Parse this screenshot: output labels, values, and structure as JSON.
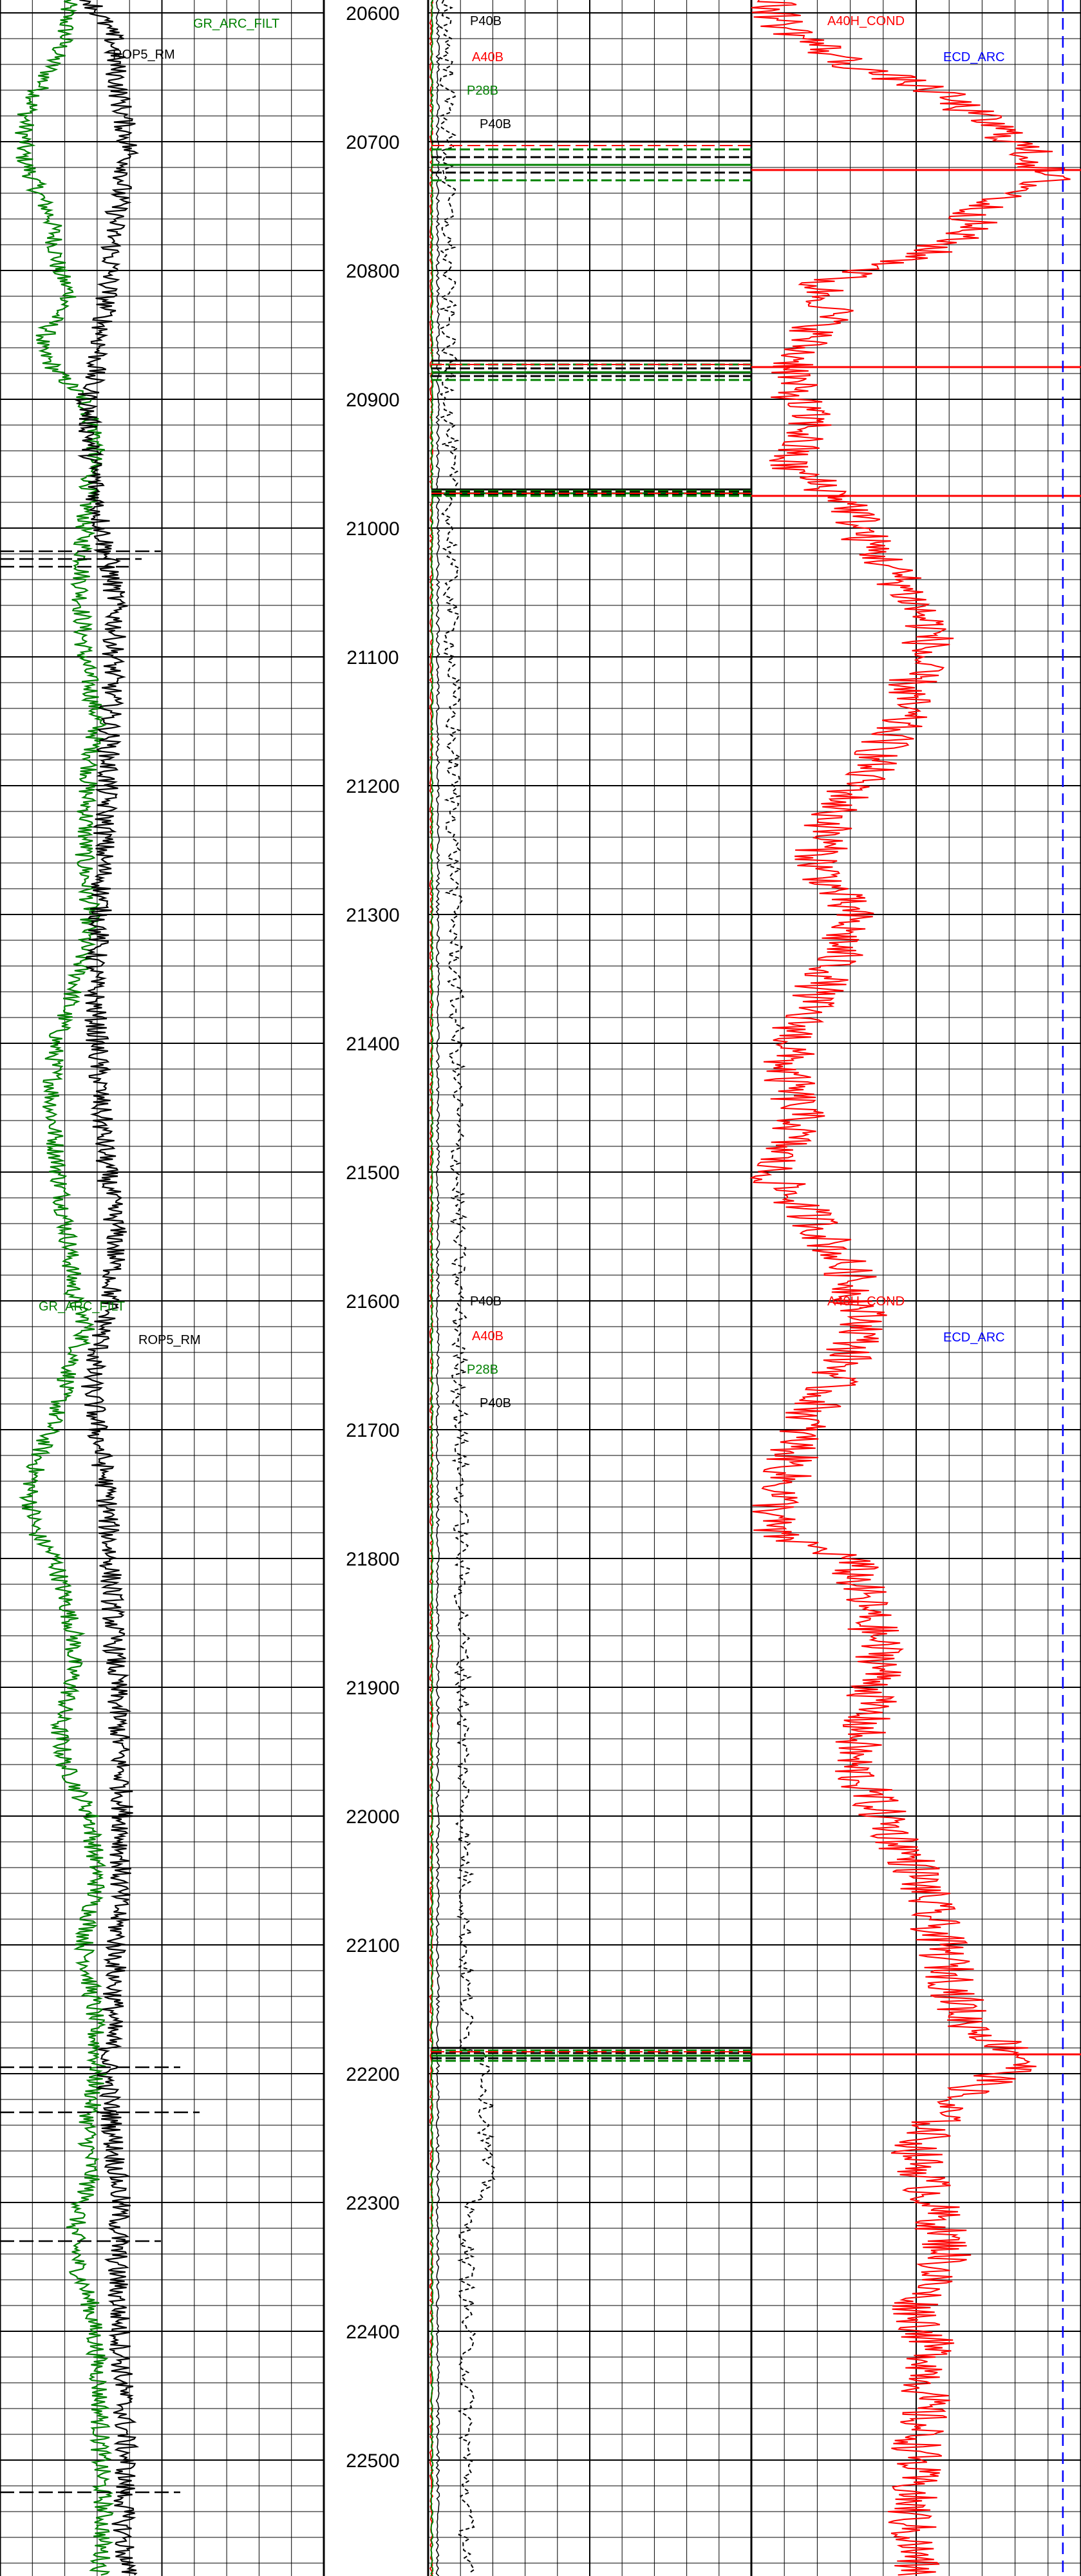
{
  "chart_data": {
    "type": "line",
    "title": "",
    "depth_axis": {
      "ticks": [
        20600,
        20700,
        20800,
        20900,
        21000,
        21100,
        21200,
        21300,
        21400,
        21500,
        21600,
        21700,
        21800,
        21900,
        22000,
        22100,
        22200,
        22300,
        22400,
        22500
      ],
      "range": [
        20590,
        22590
      ]
    },
    "grid": true,
    "tracks": [
      {
        "name": "track-1",
        "curves": [
          {
            "label": "GR_ARC_FILT",
            "color": "#008000",
            "depth": [
              20590,
              20620,
              20650,
              20680,
              20710,
              20740,
              20760,
              20800,
              20820,
              20840,
              20860,
              20880,
              20900,
              20930,
              20960,
              21000,
              21050,
              21100,
              21150,
              21200,
              21260,
              21300,
              21350,
              21400,
              21450,
              21500,
              21550,
              21600,
              21620,
              21650,
              21690,
              21720,
              21750,
              21780,
              21800,
              21830,
              21860,
              21900,
              21930,
              21960,
              22000,
              22050,
              22100,
              22150,
              22200,
              22240,
              22280,
              22320,
              22350,
              22380,
              22420,
              22460,
              22500,
              22540,
              22590
            ],
            "value": [
              0.21,
              0.2,
              0.14,
              0.08,
              0.07,
              0.12,
              0.16,
              0.18,
              0.22,
              0.16,
              0.12,
              0.18,
              0.26,
              0.3,
              0.28,
              0.26,
              0.25,
              0.26,
              0.3,
              0.27,
              0.26,
              0.28,
              0.24,
              0.17,
              0.16,
              0.18,
              0.21,
              0.23,
              0.27,
              0.22,
              0.17,
              0.12,
              0.09,
              0.11,
              0.17,
              0.2,
              0.23,
              0.22,
              0.18,
              0.2,
              0.28,
              0.3,
              0.26,
              0.29,
              0.3,
              0.27,
              0.28,
              0.23,
              0.24,
              0.28,
              0.3,
              0.31,
              0.31,
              0.32,
              0.31
            ]
          },
          {
            "label": "ROP5_RM",
            "color": "#000000",
            "depth": [
              20590,
              20620,
              20650,
              20680,
              20710,
              20740,
              20770,
              20800,
              20840,
              20870,
              20900,
              20940,
              20980,
              21020,
              21060,
              21100,
              21150,
              21200,
              21250,
              21300,
              21350,
              21400,
              21450,
              21500,
              21550,
              21600,
              21630,
              21660,
              21700,
              21750,
              21800,
              21850,
              21900,
              21950,
              22000,
              22050,
              22100,
              22150,
              22200,
              22250,
              22300,
              22350,
              22400,
              22450,
              22500,
              22550,
              22590
            ],
            "value": [
              0.28,
              0.35,
              0.36,
              0.38,
              0.4,
              0.37,
              0.35,
              0.34,
              0.32,
              0.3,
              0.27,
              0.28,
              0.3,
              0.33,
              0.36,
              0.35,
              0.34,
              0.33,
              0.32,
              0.31,
              0.29,
              0.3,
              0.31,
              0.33,
              0.36,
              0.34,
              0.31,
              0.28,
              0.3,
              0.33,
              0.34,
              0.35,
              0.36,
              0.37,
              0.38,
              0.37,
              0.36,
              0.35,
              0.33,
              0.35,
              0.37,
              0.36,
              0.37,
              0.38,
              0.39,
              0.38,
              0.39
            ]
          }
        ],
        "labels": [
          {
            "text": "GR_ARC_FILT",
            "color": "#008000",
            "depth": 20608
          },
          {
            "text": "ROP5_RM",
            "color": "#000000",
            "depth": 20632
          },
          {
            "text": "GR_ARC_FILT",
            "color": "#008000",
            "depth": 21604
          },
          {
            "text": "ROP5_RM",
            "color": "#000000",
            "depth": 21630
          }
        ]
      },
      {
        "name": "track-2",
        "curves": [
          {
            "label": "P40B",
            "color": "#000000",
            "dash": true
          },
          {
            "label": "A40B",
            "color": "#ff0000"
          },
          {
            "label": "P28B",
            "color": "#008000"
          }
        ],
        "labels": [
          {
            "text": "P40B",
            "color": "#000000",
            "depth": 20606
          },
          {
            "text": "A40B",
            "color": "#ff0000",
            "depth": 20634
          },
          {
            "text": "P28B",
            "color": "#008000",
            "depth": 20660
          },
          {
            "text": "P40B",
            "color": "#000000",
            "depth": 20686
          },
          {
            "text": "P40B",
            "color": "#000000",
            "depth": 21600
          },
          {
            "text": "A40B",
            "color": "#ff0000",
            "depth": 21627
          },
          {
            "text": "P28B",
            "color": "#008000",
            "depth": 21653
          },
          {
            "text": "P40B",
            "color": "#000000",
            "depth": 21679
          }
        ]
      },
      {
        "name": "track-3",
        "curves": [
          {
            "label": "A40H_COND",
            "color": "#ff0000",
            "depth": [
              20590,
              20610,
              20640,
              20660,
              20690,
              20710,
              20730,
              20750,
              20770,
              20790,
              20810,
              20830,
              20860,
              20890,
              20920,
              20950,
              20980,
              21010,
              21040,
              21080,
              21110,
              21150,
              21190,
              21220,
              21260,
              21300,
              21340,
              21380,
              21420,
              21460,
              21500,
              21540,
              21580,
              21620,
              21660,
              21700,
              21740,
              21780,
              21800,
              21840,
              21880,
              21920,
              21960,
              22000,
              22040,
              22080,
              22120,
              22160,
              22190,
              22220,
              22260,
              22300,
              22340,
              22380,
              22420,
              22460,
              22500,
              22540,
              22590
            ],
            "value": [
              0.05,
              0.1,
              0.3,
              0.55,
              0.75,
              0.85,
              0.9,
              0.7,
              0.65,
              0.5,
              0.2,
              0.25,
              0.15,
              0.12,
              0.18,
              0.1,
              0.3,
              0.35,
              0.45,
              0.55,
              0.5,
              0.45,
              0.35,
              0.25,
              0.2,
              0.3,
              0.25,
              0.15,
              0.1,
              0.15,
              0.05,
              0.2,
              0.3,
              0.35,
              0.25,
              0.15,
              0.1,
              0.05,
              0.3,
              0.35,
              0.4,
              0.35,
              0.3,
              0.4,
              0.5,
              0.55,
              0.6,
              0.65,
              0.85,
              0.6,
              0.5,
              0.55,
              0.6,
              0.5,
              0.55,
              0.52,
              0.5,
              0.48,
              0.5
            ]
          },
          {
            "label": "ECD_ARC",
            "color": "#0000ff",
            "dash": true
          }
        ],
        "labels": [
          {
            "text": "A40H_COND",
            "color": "#ff0000",
            "depth": 20606
          },
          {
            "text": "ECD_ARC",
            "color": "#0000ff",
            "depth": 20634
          },
          {
            "text": "A40H_COND",
            "color": "#ff0000",
            "depth": 21600
          },
          {
            "text": "ECD_ARC",
            "color": "#0000ff",
            "depth": 21628
          }
        ]
      }
    ]
  }
}
